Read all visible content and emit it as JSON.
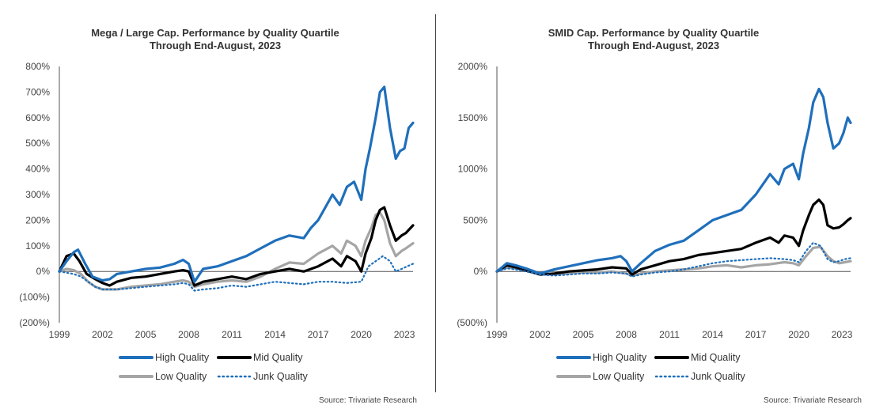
{
  "chart_data": [
    {
      "type": "line",
      "title": "Mega / Large Cap. Performance by Quality Quartile",
      "subtitle": "Through End-August, 2023",
      "x_ticks": [
        "1999",
        "2002",
        "2005",
        "2008",
        "2011",
        "2014",
        "2017",
        "2020",
        "2023"
      ],
      "xlim": [
        1999,
        2023.6
      ],
      "y_ticks": [
        "(200%)",
        "(100%)",
        "0%",
        "100%",
        "200%",
        "300%",
        "400%",
        "500%",
        "600%",
        "700%",
        "800%"
      ],
      "y_tick_values": [
        -200,
        -100,
        0,
        100,
        200,
        300,
        400,
        500,
        600,
        700,
        800
      ],
      "ylim": [
        -200,
        800
      ],
      "legend": [
        "High Quality",
        "Mid Quality",
        "Low Quality",
        "Junk Quality"
      ],
      "legend_placement": "bottom",
      "source": "Source: Trivariate Research",
      "series": [
        {
          "name": "High Quality",
          "color": "#1f6fbb",
          "style": "solid",
          "x": [
            1999,
            1999.5,
            2000,
            2000.3,
            2000.8,
            2001.3,
            2002,
            2002.5,
            2003,
            2004,
            2005,
            2006,
            2007,
            2007.6,
            2008,
            2008.4,
            2009,
            2010,
            2011,
            2012,
            2013,
            2014,
            2015,
            2016,
            2016.5,
            2017,
            2018,
            2018.5,
            2019,
            2019.5,
            2020,
            2020.3,
            2020.6,
            2021,
            2021.3,
            2021.6,
            2022,
            2022.4,
            2022.7,
            2023,
            2023.3,
            2023.6
          ],
          "y": [
            0,
            40,
            75,
            85,
            30,
            -20,
            -35,
            -30,
            -10,
            0,
            10,
            15,
            30,
            45,
            30,
            -40,
            10,
            20,
            40,
            60,
            90,
            120,
            140,
            130,
            170,
            200,
            300,
            260,
            330,
            350,
            280,
            400,
            480,
            600,
            700,
            720,
            560,
            440,
            470,
            480,
            560,
            580
          ]
        },
        {
          "name": "Mid Quality",
          "color": "#000000",
          "style": "solid",
          "x": [
            1999,
            1999.5,
            2000,
            2000.4,
            2000.9,
            2001.5,
            2002,
            2002.5,
            2003,
            2004,
            2005,
            2006,
            2007,
            2007.6,
            2008,
            2008.4,
            2009,
            2010,
            2011,
            2012,
            2013,
            2014,
            2015,
            2016,
            2017,
            2018,
            2018.6,
            2019,
            2019.6,
            2020,
            2020.3,
            2020.7,
            2021,
            2021.3,
            2021.6,
            2022,
            2022.4,
            2022.8,
            2023.1,
            2023.6
          ],
          "y": [
            0,
            60,
            70,
            40,
            -10,
            -30,
            -45,
            -55,
            -40,
            -25,
            -20,
            -10,
            0,
            5,
            0,
            -55,
            -40,
            -30,
            -20,
            -30,
            -10,
            0,
            10,
            0,
            20,
            50,
            20,
            60,
            40,
            0,
            70,
            130,
            200,
            240,
            250,
            180,
            120,
            140,
            150,
            180
          ]
        },
        {
          "name": "Low Quality",
          "color": "#a5a5a5",
          "style": "solid",
          "x": [
            1999,
            1999.5,
            2000,
            2000.5,
            2001,
            2001.5,
            2002,
            2003,
            2004,
            2005,
            2006,
            2007,
            2007.6,
            2008,
            2008.4,
            2009,
            2010,
            2011,
            2012,
            2013,
            2014,
            2015,
            2016,
            2017,
            2018,
            2018.6,
            2019,
            2019.6,
            2020,
            2020.3,
            2020.7,
            2021,
            2021.3,
            2021.6,
            2022,
            2022.4,
            2022.8,
            2023.1,
            2023.6
          ],
          "y": [
            0,
            10,
            5,
            -10,
            -40,
            -60,
            -70,
            -70,
            -60,
            -55,
            -50,
            -40,
            -35,
            -40,
            -60,
            -50,
            -40,
            -35,
            -40,
            -20,
            10,
            35,
            30,
            70,
            100,
            70,
            120,
            100,
            60,
            120,
            170,
            220,
            230,
            200,
            110,
            60,
            80,
            90,
            110
          ]
        },
        {
          "name": "Junk Quality",
          "color": "#1f6fbb",
          "style": "dotted",
          "x": [
            1999,
            2000,
            2000.5,
            2001,
            2001.5,
            2002,
            2003,
            2004,
            2005,
            2006,
            2007,
            2007.6,
            2008,
            2008.4,
            2009,
            2010,
            2011,
            2012,
            2013,
            2014,
            2015,
            2016,
            2017,
            2018,
            2019,
            2020,
            2020.5,
            2021,
            2021.5,
            2022,
            2022.4,
            2022.8,
            2023.2,
            2023.6
          ],
          "y": [
            0,
            -10,
            -20,
            -40,
            -60,
            -70,
            -70,
            -65,
            -60,
            -55,
            -50,
            -45,
            -50,
            -75,
            -70,
            -65,
            -55,
            -60,
            -50,
            -40,
            -45,
            -50,
            -40,
            -40,
            -45,
            -40,
            20,
            40,
            60,
            40,
            0,
            10,
            20,
            30
          ]
        }
      ]
    },
    {
      "type": "line",
      "title": "SMID Cap. Performance by Quality Quartile",
      "subtitle": "Through End-August, 2023",
      "x_ticks": [
        "1999",
        "2002",
        "2005",
        "2008",
        "2011",
        "2014",
        "2017",
        "2020",
        "2023"
      ],
      "xlim": [
        1999,
        2023.6
      ],
      "y_ticks": [
        "(500%)",
        "0%",
        "500%",
        "1000%",
        "1500%",
        "2000%"
      ],
      "y_tick_values": [
        -500,
        0,
        500,
        1000,
        1500,
        2000
      ],
      "ylim": [
        -500,
        2000
      ],
      "legend": [
        "High Quality",
        "Mid Quality",
        "Low Quality",
        "Junk Quality"
      ],
      "legend_placement": "bottom",
      "source": "Source: Trivariate Research",
      "series": [
        {
          "name": "High Quality",
          "color": "#1f6fbb",
          "style": "solid",
          "x": [
            1999,
            1999.7,
            2000.3,
            2001,
            2002,
            2003,
            2004,
            2005,
            2006,
            2007,
            2007.6,
            2008,
            2008.4,
            2009,
            2010,
            2011,
            2012,
            2013,
            2014,
            2015,
            2016,
            2017,
            2018,
            2018.6,
            2019,
            2019.6,
            2020,
            2020.3,
            2020.7,
            2021,
            2021.4,
            2021.7,
            2022,
            2022.4,
            2022.8,
            2023.1,
            2023.4,
            2023.6
          ],
          "y": [
            0,
            80,
            60,
            30,
            -20,
            20,
            50,
            80,
            110,
            130,
            150,
            100,
            0,
            80,
            200,
            260,
            300,
            400,
            500,
            550,
            600,
            750,
            950,
            850,
            1000,
            1050,
            900,
            1150,
            1400,
            1650,
            1780,
            1700,
            1450,
            1200,
            1250,
            1350,
            1500,
            1450
          ]
        },
        {
          "name": "Mid Quality",
          "color": "#000000",
          "style": "solid",
          "x": [
            1999,
            1999.7,
            2000.3,
            2001,
            2002,
            2003,
            2004,
            2005,
            2006,
            2007,
            2008,
            2008.4,
            2009,
            2010,
            2011,
            2012,
            2013,
            2014,
            2015,
            2016,
            2017,
            2018,
            2018.6,
            2019,
            2019.6,
            2020,
            2020.3,
            2020.7,
            2021,
            2021.4,
            2021.7,
            2022,
            2022.4,
            2022.8,
            2023.1,
            2023.4,
            2023.6
          ],
          "y": [
            0,
            60,
            40,
            10,
            -30,
            -20,
            0,
            10,
            20,
            40,
            30,
            -30,
            20,
            60,
            100,
            120,
            160,
            180,
            200,
            220,
            280,
            330,
            280,
            350,
            330,
            250,
            400,
            550,
            650,
            700,
            650,
            450,
            420,
            430,
            460,
            500,
            520
          ]
        },
        {
          "name": "Low Quality",
          "color": "#a5a5a5",
          "style": "solid",
          "x": [
            1999,
            1999.7,
            2000.3,
            2001,
            2002,
            2003,
            2004,
            2005,
            2006,
            2007,
            2008,
            2008.4,
            2009,
            2010,
            2011,
            2012,
            2013,
            2014,
            2015,
            2016,
            2017,
            2018,
            2019,
            2019.6,
            2020,
            2020.5,
            2021,
            2021.5,
            2022,
            2022.4,
            2022.8,
            2023.2,
            2023.6
          ],
          "y": [
            0,
            40,
            30,
            10,
            -20,
            -30,
            -20,
            -10,
            -10,
            0,
            -20,
            -40,
            -20,
            0,
            10,
            20,
            30,
            50,
            60,
            40,
            60,
            70,
            90,
            80,
            60,
            150,
            230,
            240,
            150,
            100,
            80,
            90,
            100
          ]
        },
        {
          "name": "Junk Quality",
          "color": "#1f6fbb",
          "style": "dotted",
          "x": [
            1999,
            1999.7,
            2000.3,
            2001,
            2002,
            2003,
            2004,
            2005,
            2006,
            2007,
            2008,
            2008.4,
            2009,
            2010,
            2011,
            2012,
            2013,
            2014,
            2015,
            2016,
            2017,
            2018,
            2019,
            2019.6,
            2020,
            2020.5,
            2021,
            2021.5,
            2022,
            2022.4,
            2022.8,
            2023.2,
            2023.6
          ],
          "y": [
            0,
            30,
            20,
            0,
            -30,
            -40,
            -30,
            -20,
            -20,
            -10,
            -20,
            -50,
            -30,
            -10,
            0,
            20,
            50,
            80,
            100,
            110,
            120,
            130,
            120,
            110,
            90,
            200,
            280,
            250,
            120,
            90,
            100,
            120,
            130
          ]
        }
      ]
    }
  ]
}
